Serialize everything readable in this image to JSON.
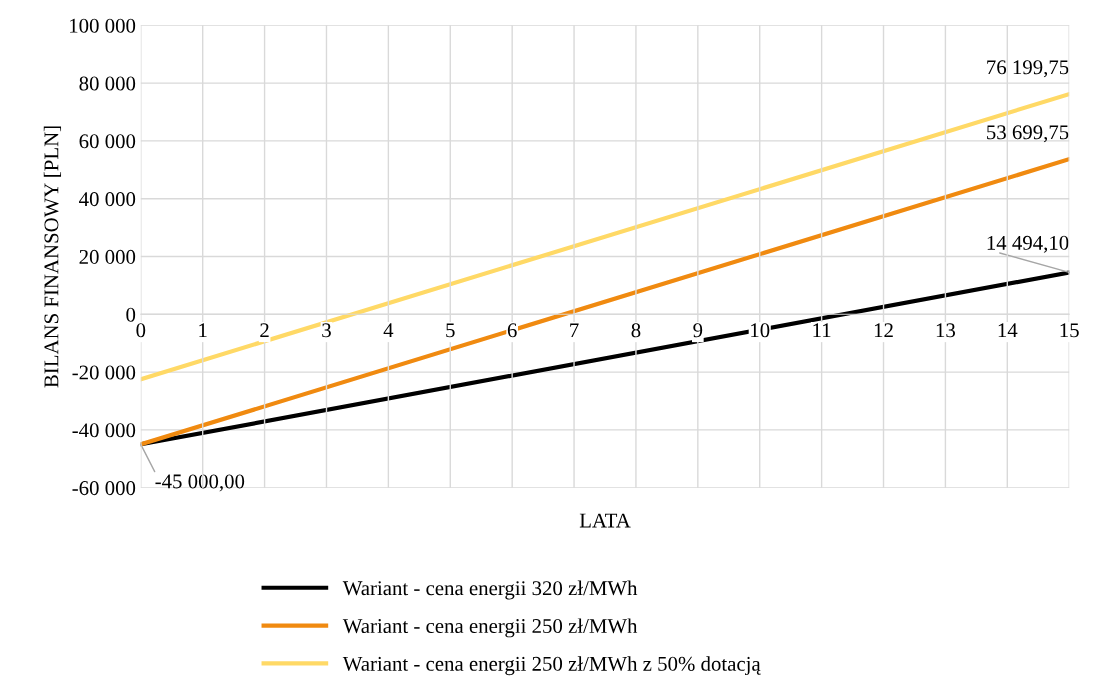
{
  "chart_data": {
    "type": "line",
    "xlabel": "LATA",
    "ylabel": "BILANS FINANSOWY [PLN]",
    "x": [
      0,
      15
    ],
    "series": [
      {
        "name": "Wariant - cena energii 320 zł/MWh",
        "color": "#000000",
        "values": [
          -45000,
          14494.1
        ],
        "value_labels": [
          "-45 000,00",
          "14 494,10"
        ]
      },
      {
        "name": "Wariant - cena energii 250 zł/MWh",
        "color": "#f08a10",
        "values": [
          -45000,
          53699.75
        ],
        "value_labels": [
          null,
          "53 699,75"
        ]
      },
      {
        "name": "Wariant - cena energii 250 zł/MWh z 50% dotacją",
        "color": "#ffd966",
        "values": [
          -22500,
          76199.75
        ],
        "value_labels": [
          null,
          "76 199,75"
        ]
      }
    ],
    "xlim": [
      0,
      15
    ],
    "xticks": [
      0,
      1,
      2,
      3,
      4,
      5,
      6,
      7,
      8,
      9,
      10,
      11,
      12,
      13,
      14,
      15
    ],
    "ylim": [
      -60000,
      100000
    ],
    "yticks": [
      {
        "value": -60000,
        "label": "-60 000"
      },
      {
        "value": -40000,
        "label": "-40 000"
      },
      {
        "value": -20000,
        "label": "-20 000"
      },
      0,
      {
        "value": 20000,
        "label": "20 000"
      },
      {
        "value": 40000,
        "label": "40 000"
      },
      {
        "value": 60000,
        "label": "60 000"
      },
      {
        "value": 80000,
        "label": "80 000"
      },
      {
        "value": 100000,
        "label": "100 000"
      }
    ],
    "grid": true,
    "legend": "bottom",
    "marker": "none",
    "line_style": "solid"
  }
}
